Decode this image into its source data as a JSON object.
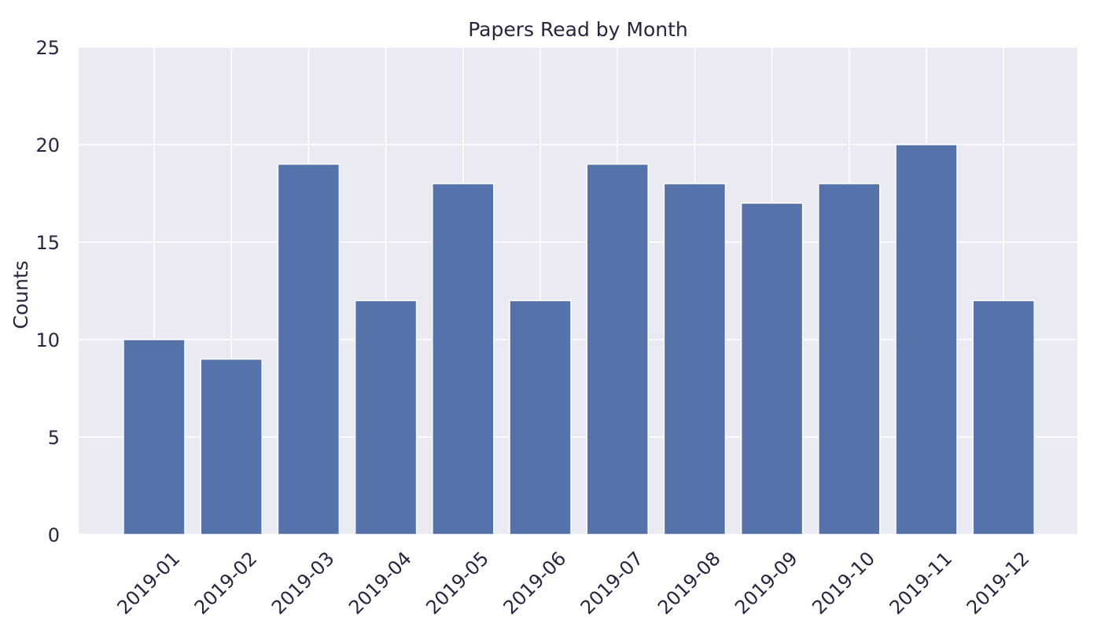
{
  "chart_data": {
    "type": "bar",
    "title": "Papers Read by Month",
    "xlabel": "",
    "ylabel": "Counts",
    "categories": [
      "2019-01",
      "2019-02",
      "2019-03",
      "2019-04",
      "2019-05",
      "2019-06",
      "2019-07",
      "2019-08",
      "2019-09",
      "2019-10",
      "2019-11",
      "2019-12"
    ],
    "values": [
      10,
      9,
      19,
      12,
      18,
      12,
      19,
      18,
      17,
      18,
      20,
      12
    ],
    "ylim": [
      0,
      25
    ],
    "yticks": [
      0,
      5,
      10,
      15,
      20,
      25
    ],
    "grid": true,
    "legend": "none",
    "colors": {
      "bar": "#5572aa",
      "plot_background": "#eaeaf2",
      "grid": "#ffffff",
      "text": "#262640"
    }
  }
}
